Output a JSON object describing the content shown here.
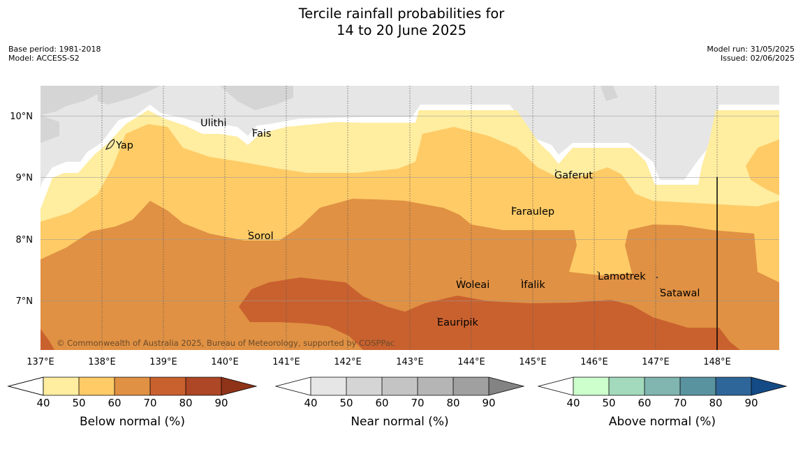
{
  "title": {
    "line1": "Tercile rainfall probabilities for",
    "line2": "14 to 20 June 2025"
  },
  "meta": {
    "base_period": "Base period: 1981-2018",
    "model": "Model: ACCESS-S2",
    "model_run": "Model run: 31/05/2025",
    "issued": "Issued: 02/06/2025"
  },
  "map": {
    "lat_labels": [
      "10°N",
      "9°N",
      "8°N",
      "7°N"
    ],
    "lon_labels": [
      "137°E",
      "138°E",
      "139°E",
      "140°E",
      "141°E",
      "142°E",
      "143°E",
      "144°E",
      "145°E",
      "146°E",
      "147°E",
      "148°E"
    ],
    "places": [
      {
        "name": "Ulithi"
      },
      {
        "name": "Fais"
      },
      {
        "name": "Yap"
      },
      {
        "name": "Gaferut"
      },
      {
        "name": "Faraulep"
      },
      {
        "name": "Sorol"
      },
      {
        "name": "Lamotrek"
      },
      {
        "name": "Woleai"
      },
      {
        "name": "Ifalik"
      },
      {
        "name": "Satawal"
      },
      {
        "name": "Eauripik"
      }
    ],
    "copyright": "© Commonwealth of Australia 2025, Bureau of Meteorology, supported by COSPPac",
    "colors": {
      "below_40_50": "#ffeda0",
      "below_50_60": "#fecb66",
      "below_60_70": "#e09143",
      "below_70_80": "#c9612f",
      "near_40_50": "#e6e6e6",
      "near_50_60": "#d5d5d5"
    }
  },
  "colorbars": [
    {
      "title": "Below normal (%)",
      "ticks": [
        "40",
        "50",
        "60",
        "70",
        "80",
        "90"
      ],
      "colors": [
        "#ffffff",
        "#ffeda0",
        "#fecb66",
        "#e09143",
        "#c9612f",
        "#ad4725",
        "#8f3319"
      ]
    },
    {
      "title": "Near normal (%)",
      "ticks": [
        "40",
        "50",
        "60",
        "70",
        "80",
        "90"
      ],
      "colors": [
        "#ffffff",
        "#e6e6e6",
        "#d5d5d5",
        "#c4c4c4",
        "#b5b5b5",
        "#a0a0a0",
        "#838383"
      ]
    },
    {
      "title": "Above normal (%)",
      "ticks": [
        "40",
        "50",
        "60",
        "70",
        "80",
        "90"
      ],
      "colors": [
        "#ffffff",
        "#ccffcc",
        "#a3d9bc",
        "#80b5b0",
        "#5a93a0",
        "#2f6699",
        "#144b86"
      ]
    }
  ]
}
